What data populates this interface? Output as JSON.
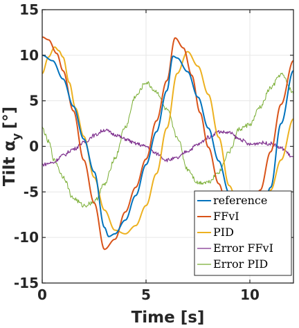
{
  "chart_data": {
    "type": "line",
    "xlabel": "Time [s]",
    "ylabel": {
      "main": "Tilt α",
      "subscript": "y",
      "unit": "[°]"
    },
    "xlim": [
      0,
      12.1
    ],
    "ylim": [
      -15,
      15
    ],
    "xticks": [
      0,
      5,
      10
    ],
    "yticks": [
      -15,
      -10,
      -5,
      0,
      5,
      10,
      15
    ],
    "grid": true,
    "legend_position": "bottom-right",
    "series": [
      {
        "name": "reference",
        "color": "#0072bd",
        "width": 2,
        "x": [
          0,
          0.5,
          1,
          1.5,
          2,
          2.5,
          3,
          3.2,
          3.5,
          4,
          4.5,
          5,
          5.5,
          6,
          6.3,
          6.5,
          7,
          7.5,
          8,
          8.5,
          9,
          9.5,
          10,
          10.5,
          11,
          11.5,
          12.1
        ],
        "y": [
          10,
          9.4,
          7.4,
          4.4,
          0.8,
          -2.8,
          -8.9,
          -9.9,
          -9.6,
          -8.1,
          -5.4,
          -2.0,
          1.6,
          6.1,
          9.9,
          9.7,
          8.2,
          5.4,
          2.0,
          -1.6,
          -5.1,
          -7.9,
          -9.7,
          -8.5,
          -4.5,
          2.5,
          8.3
        ]
      },
      {
        "name": "FFvI",
        "color": "#d95319",
        "width": 2,
        "x": [
          0,
          0.3,
          0.7,
          1,
          1.5,
          2,
          2.5,
          3,
          3.5,
          4,
          4.5,
          5,
          5.5,
          6,
          6.4,
          6.8,
          7.2,
          7.6,
          8,
          8.5,
          9,
          9.5,
          10,
          10.5,
          11,
          11.5,
          12.1
        ],
        "y": [
          12,
          11.7,
          10.2,
          8.3,
          3.9,
          -1.5,
          -6.2,
          -11.3,
          -10.2,
          -7.2,
          -4.5,
          -1.4,
          2.8,
          7.2,
          11.9,
          10.8,
          7.8,
          3.7,
          -0.1,
          -4.1,
          -7.9,
          -9.8,
          -7.4,
          -4.8,
          -0.6,
          4.6,
          9.4
        ]
      },
      {
        "name": "PID",
        "color": "#edb120",
        "width": 2,
        "x": [
          0,
          0.3,
          0.6,
          0.8,
          1,
          1.3,
          1.6,
          2,
          2.5,
          3,
          3.5,
          4,
          4.5,
          5,
          5.5,
          6,
          6.5,
          7,
          7.5,
          8,
          8.5,
          9,
          9.5,
          10,
          10.5,
          11,
          11.5,
          12.1
        ],
        "y": [
          8.0,
          9.8,
          10.9,
          10.5,
          9.8,
          7.0,
          4.2,
          1.1,
          -3.4,
          -7.0,
          -9.2,
          -9.6,
          -8.7,
          -6.5,
          -3.0,
          2.0,
          8.0,
          10.4,
          8.8,
          5.7,
          1.0,
          -4.3,
          -7.0,
          -9.7,
          -8.3,
          -4.8,
          -1.5,
          3.0
        ]
      },
      {
        "name": "Error FFvI",
        "color": "#7e2f8e",
        "width": 1.2,
        "noise": 0.2,
        "x": [
          0,
          0.5,
          1,
          1.5,
          2,
          2.5,
          3,
          3.5,
          4,
          4.5,
          5,
          5.5,
          6,
          6.5,
          7,
          7.5,
          8,
          8.5,
          9,
          9.5,
          10,
          10.5,
          11,
          11.5,
          12.1
        ],
        "y": [
          -2.0,
          -1.8,
          -1.0,
          -0.3,
          0.4,
          1.2,
          1.8,
          1.3,
          0.8,
          0.3,
          0.0,
          -0.8,
          -1.5,
          -1.3,
          -0.5,
          0.2,
          1.0,
          1.6,
          1.5,
          0.8,
          0.2,
          0.4,
          0.3,
          -0.2,
          -1.2
        ]
      },
      {
        "name": "Error PID",
        "color": "#77ac30",
        "width": 1.0,
        "noise": 0.25,
        "x": [
          0,
          0.3,
          0.6,
          1,
          1.5,
          2,
          2.5,
          3,
          3.5,
          4,
          4.5,
          5,
          5.5,
          6,
          6.5,
          7,
          7.5,
          8,
          8.5,
          9,
          9.5,
          10,
          10.5,
          11,
          11.5,
          12.1
        ],
        "y": [
          2.0,
          0.5,
          -1.6,
          -3.3,
          -5.7,
          -6.5,
          -6.1,
          -4.2,
          -1.3,
          2.1,
          5.5,
          7.0,
          6.0,
          4.0,
          1.0,
          -2.5,
          -4.0,
          -3.9,
          -2.8,
          -0.6,
          1.9,
          2.4,
          4.3,
          6.4,
          7.9,
          5.9
        ]
      }
    ]
  }
}
